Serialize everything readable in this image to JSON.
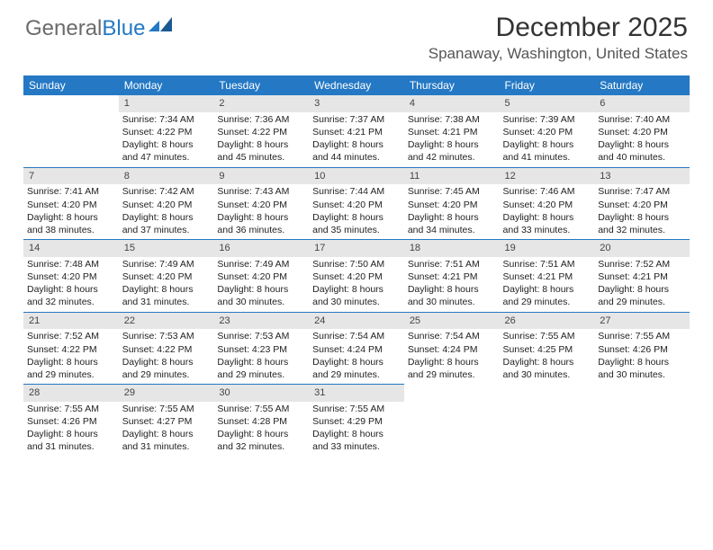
{
  "logo": {
    "text1": "General",
    "text2": "Blue"
  },
  "title": "December 2025",
  "location": "Spanaway, Washington, United States",
  "colors": {
    "header_bg": "#2478c4",
    "header_fg": "#ffffff",
    "daynum_bg": "#e6e6e6",
    "row_border": "#2478c4",
    "logo_gray": "#6b6b6b",
    "logo_blue": "#2478c4"
  },
  "dayNames": [
    "Sunday",
    "Monday",
    "Tuesday",
    "Wednesday",
    "Thursday",
    "Friday",
    "Saturday"
  ],
  "weeks": [
    [
      null,
      {
        "n": "1",
        "sr": "7:34 AM",
        "ss": "4:22 PM",
        "dl": "8 hours and 47 minutes."
      },
      {
        "n": "2",
        "sr": "7:36 AM",
        "ss": "4:22 PM",
        "dl": "8 hours and 45 minutes."
      },
      {
        "n": "3",
        "sr": "7:37 AM",
        "ss": "4:21 PM",
        "dl": "8 hours and 44 minutes."
      },
      {
        "n": "4",
        "sr": "7:38 AM",
        "ss": "4:21 PM",
        "dl": "8 hours and 42 minutes."
      },
      {
        "n": "5",
        "sr": "7:39 AM",
        "ss": "4:20 PM",
        "dl": "8 hours and 41 minutes."
      },
      {
        "n": "6",
        "sr": "7:40 AM",
        "ss": "4:20 PM",
        "dl": "8 hours and 40 minutes."
      }
    ],
    [
      {
        "n": "7",
        "sr": "7:41 AM",
        "ss": "4:20 PM",
        "dl": "8 hours and 38 minutes."
      },
      {
        "n": "8",
        "sr": "7:42 AM",
        "ss": "4:20 PM",
        "dl": "8 hours and 37 minutes."
      },
      {
        "n": "9",
        "sr": "7:43 AM",
        "ss": "4:20 PM",
        "dl": "8 hours and 36 minutes."
      },
      {
        "n": "10",
        "sr": "7:44 AM",
        "ss": "4:20 PM",
        "dl": "8 hours and 35 minutes."
      },
      {
        "n": "11",
        "sr": "7:45 AM",
        "ss": "4:20 PM",
        "dl": "8 hours and 34 minutes."
      },
      {
        "n": "12",
        "sr": "7:46 AM",
        "ss": "4:20 PM",
        "dl": "8 hours and 33 minutes."
      },
      {
        "n": "13",
        "sr": "7:47 AM",
        "ss": "4:20 PM",
        "dl": "8 hours and 32 minutes."
      }
    ],
    [
      {
        "n": "14",
        "sr": "7:48 AM",
        "ss": "4:20 PM",
        "dl": "8 hours and 32 minutes."
      },
      {
        "n": "15",
        "sr": "7:49 AM",
        "ss": "4:20 PM",
        "dl": "8 hours and 31 minutes."
      },
      {
        "n": "16",
        "sr": "7:49 AM",
        "ss": "4:20 PM",
        "dl": "8 hours and 30 minutes."
      },
      {
        "n": "17",
        "sr": "7:50 AM",
        "ss": "4:20 PM",
        "dl": "8 hours and 30 minutes."
      },
      {
        "n": "18",
        "sr": "7:51 AM",
        "ss": "4:21 PM",
        "dl": "8 hours and 30 minutes."
      },
      {
        "n": "19",
        "sr": "7:51 AM",
        "ss": "4:21 PM",
        "dl": "8 hours and 29 minutes."
      },
      {
        "n": "20",
        "sr": "7:52 AM",
        "ss": "4:21 PM",
        "dl": "8 hours and 29 minutes."
      }
    ],
    [
      {
        "n": "21",
        "sr": "7:52 AM",
        "ss": "4:22 PM",
        "dl": "8 hours and 29 minutes."
      },
      {
        "n": "22",
        "sr": "7:53 AM",
        "ss": "4:22 PM",
        "dl": "8 hours and 29 minutes."
      },
      {
        "n": "23",
        "sr": "7:53 AM",
        "ss": "4:23 PM",
        "dl": "8 hours and 29 minutes."
      },
      {
        "n": "24",
        "sr": "7:54 AM",
        "ss": "4:24 PM",
        "dl": "8 hours and 29 minutes."
      },
      {
        "n": "25",
        "sr": "7:54 AM",
        "ss": "4:24 PM",
        "dl": "8 hours and 29 minutes."
      },
      {
        "n": "26",
        "sr": "7:55 AM",
        "ss": "4:25 PM",
        "dl": "8 hours and 30 minutes."
      },
      {
        "n": "27",
        "sr": "7:55 AM",
        "ss": "4:26 PM",
        "dl": "8 hours and 30 minutes."
      }
    ],
    [
      {
        "n": "28",
        "sr": "7:55 AM",
        "ss": "4:26 PM",
        "dl": "8 hours and 31 minutes."
      },
      {
        "n": "29",
        "sr": "7:55 AM",
        "ss": "4:27 PM",
        "dl": "8 hours and 31 minutes."
      },
      {
        "n": "30",
        "sr": "7:55 AM",
        "ss": "4:28 PM",
        "dl": "8 hours and 32 minutes."
      },
      {
        "n": "31",
        "sr": "7:55 AM",
        "ss": "4:29 PM",
        "dl": "8 hours and 33 minutes."
      },
      null,
      null,
      null
    ]
  ],
  "labels": {
    "sunrise": "Sunrise: ",
    "sunset": "Sunset: ",
    "daylight": "Daylight: "
  }
}
